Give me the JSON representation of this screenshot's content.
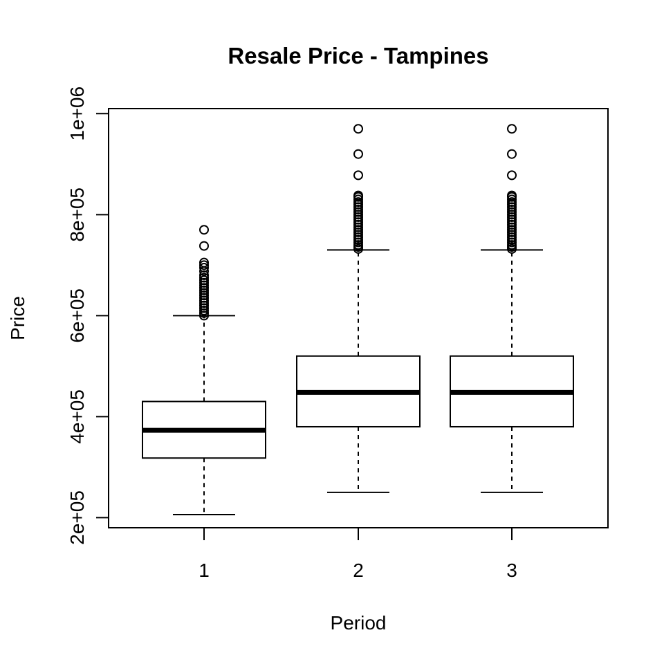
{
  "chart_data": {
    "type": "boxplot",
    "title": "Resale Price - Tampines",
    "xlabel": "Period",
    "ylabel": "Price",
    "categories": [
      "1",
      "2",
      "3"
    ],
    "ylim": [
      180000,
      1010000
    ],
    "yticks": [
      200000,
      400000,
      600000,
      800000,
      1000000
    ],
    "ytick_labels": [
      "2e+05",
      "4e+05",
      "6e+05",
      "8e+05",
      "1e+06"
    ],
    "boxes": [
      {
        "category": "1",
        "whisker_low": 206000,
        "q1": 318000,
        "median": 373000,
        "q3": 430000,
        "whisker_high": 600000,
        "outliers": [
          600000,
          605000,
          610000,
          615000,
          620000,
          625000,
          630000,
          635000,
          640000,
          645000,
          650000,
          655000,
          660000,
          665000,
          670000,
          675000,
          680000,
          688000,
          695000,
          700000,
          705000,
          738000,
          770000
        ]
      },
      {
        "category": "2",
        "whisker_low": 250000,
        "q1": 380000,
        "median": 448000,
        "q3": 520000,
        "whisker_high": 730000,
        "outliers": [
          732000,
          736000,
          740000,
          745000,
          750000,
          755000,
          760000,
          765000,
          770000,
          775000,
          780000,
          785000,
          790000,
          795000,
          800000,
          805000,
          810000,
          815000,
          820000,
          825000,
          830000,
          835000,
          838000,
          878000,
          920000,
          970000
        ]
      },
      {
        "category": "3",
        "whisker_low": 250000,
        "q1": 380000,
        "median": 448000,
        "q3": 520000,
        "whisker_high": 730000,
        "outliers": [
          732000,
          736000,
          740000,
          745000,
          750000,
          755000,
          760000,
          765000,
          770000,
          775000,
          780000,
          785000,
          790000,
          795000,
          800000,
          805000,
          810000,
          815000,
          820000,
          825000,
          830000,
          835000,
          838000,
          878000,
          920000,
          970000
        ]
      }
    ]
  }
}
